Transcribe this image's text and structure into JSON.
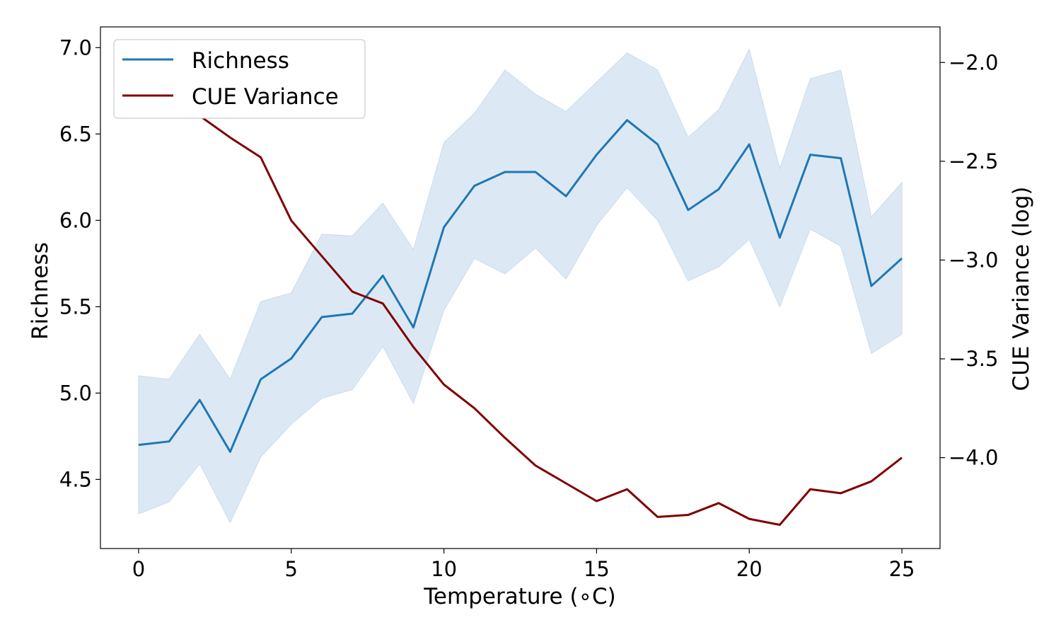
{
  "chart_data": {
    "type": "line",
    "xlabel": "Temperature (∘C)",
    "ylabel_left": "Richness",
    "ylabel_right": "CUE Variance (log)",
    "x": [
      0,
      1,
      2,
      3,
      4,
      5,
      6,
      7,
      8,
      9,
      10,
      11,
      12,
      13,
      14,
      15,
      16,
      17,
      18,
      19,
      20,
      21,
      22,
      23,
      24,
      25
    ],
    "xlim": [
      -1.25,
      26.25
    ],
    "xticks": [
      0,
      5,
      10,
      15,
      20,
      25
    ],
    "ylim_left": [
      4.1,
      7.12
    ],
    "yticks_left": [
      4.5,
      5.0,
      5.5,
      6.0,
      6.5,
      7.0
    ],
    "ytick_labels_left": [
      "4.5",
      "5.0",
      "5.5",
      "6.0",
      "6.5",
      "7.0"
    ],
    "ylim_right": [
      -4.46,
      -1.82
    ],
    "yticks_right": [
      -4.0,
      -3.5,
      -3.0,
      -2.5,
      -2.0
    ],
    "ytick_labels_right": [
      "−4.0",
      "−3.5",
      "−3.0",
      "−2.5",
      "−2.0"
    ],
    "legend_position": "top-left",
    "series": [
      {
        "name": "Richness",
        "axis": "left",
        "color": "#1f77b4",
        "values": [
          4.7,
          4.72,
          4.96,
          4.66,
          5.08,
          5.2,
          5.44,
          5.46,
          5.68,
          5.38,
          5.96,
          6.2,
          6.28,
          6.28,
          6.14,
          6.38,
          6.58,
          6.44,
          6.06,
          6.18,
          6.44,
          5.9,
          6.38,
          6.36,
          5.62,
          5.78
        ],
        "band_lower": [
          4.3,
          4.37,
          4.59,
          4.25,
          4.63,
          4.82,
          4.97,
          5.02,
          5.27,
          4.94,
          5.48,
          5.78,
          5.69,
          5.84,
          5.66,
          5.97,
          6.19,
          6.0,
          5.65,
          5.73,
          5.89,
          5.5,
          5.95,
          5.85,
          5.23,
          5.34
        ],
        "band_upper": [
          5.1,
          5.08,
          5.34,
          5.08,
          5.53,
          5.58,
          5.92,
          5.91,
          6.1,
          5.83,
          6.45,
          6.62,
          6.87,
          6.73,
          6.63,
          6.8,
          6.97,
          6.87,
          6.48,
          6.64,
          6.99,
          6.3,
          6.82,
          6.87,
          6.02,
          6.22
        ],
        "band_color": "#dce9f4"
      },
      {
        "name": "CUE Variance",
        "axis": "right",
        "color": "#800000",
        "values": [
          -1.94,
          -2.12,
          -2.27,
          -2.38,
          -2.48,
          -2.8,
          -2.98,
          -3.16,
          -3.22,
          -3.44,
          -3.63,
          -3.75,
          -3.9,
          -4.04,
          -4.13,
          -4.22,
          -4.16,
          -4.3,
          -4.29,
          -4.23,
          -4.31,
          -4.34,
          -4.16,
          -4.18,
          -4.12,
          -4.0
        ]
      }
    ]
  }
}
